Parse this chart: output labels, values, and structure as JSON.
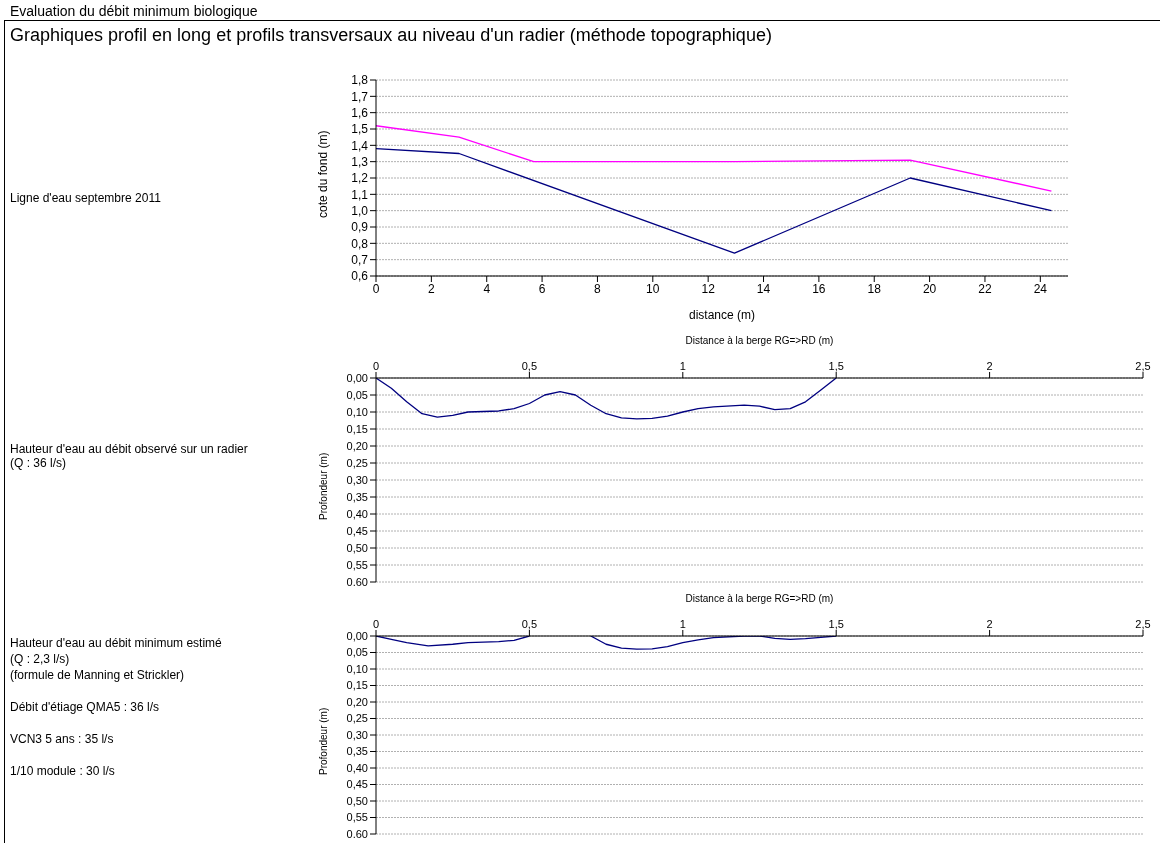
{
  "chart_data": [
    {
      "type": "line",
      "title": "Graphiques profil en long et profils transversaux au niveau d'un radier (méthode topographique)",
      "annotations": [
        "Evaluation du débit minimum biologique",
        "Ligne d'eau septembre 2011"
      ],
      "xlabel": "distance (m)",
      "ylabel": "cote du fond (m)",
      "xlim": [
        0,
        25
      ],
      "xticks": [
        0,
        2,
        4,
        6,
        8,
        10,
        12,
        14,
        16,
        18,
        20,
        22,
        24
      ],
      "ylim": [
        0.6,
        1.8
      ],
      "yticks": [
        {
          "value": 0.6,
          "label": "0,6"
        },
        {
          "value": 0.7,
          "label": "0,7"
        },
        {
          "value": 0.8,
          "label": "0,8"
        },
        {
          "value": 0.9,
          "label": "0,9"
        },
        {
          "value": 1.0,
          "label": "1,0"
        },
        {
          "value": 1.1,
          "label": "1,1"
        },
        {
          "value": 1.2,
          "label": "1,2"
        },
        {
          "value": 1.3,
          "label": "1,3"
        },
        {
          "value": 1.4,
          "label": "1,4"
        },
        {
          "value": 1.5,
          "label": "1,5"
        },
        {
          "value": 1.6,
          "label": "1,6"
        },
        {
          "value": 1.7,
          "label": "1,7"
        },
        {
          "value": 1.8,
          "label": "1,8"
        }
      ],
      "grid": "y",
      "marker": "none",
      "line_style": "solid",
      "series": [
        {
          "color": "#ff00ff",
          "x": [
            0,
            3,
            5.7,
            12.95,
            19.3,
            24.4
          ],
          "values": [
            1.52,
            1.45,
            1.3,
            1.3,
            1.31,
            1.12
          ]
        },
        {
          "color": "#000080",
          "x": [
            0,
            3,
            12.95,
            19.3,
            24.4
          ],
          "values": [
            1.38,
            1.35,
            0.74,
            1.2,
            1.0
          ]
        }
      ]
    },
    {
      "type": "line",
      "annotations": [
        "Hauteur d'eau au débit observé sur un radier (Q : 36 l/s)"
      ],
      "xlabel": "Distance à la berge RG=>RD (m)",
      "ylabel": "Profondeur (m)",
      "xlim": [
        0,
        2.5
      ],
      "xticks": [
        0,
        {
          "value": 0.5,
          "label": "0,5"
        },
        1,
        {
          "value": 1.5,
          "label": "1,5"
        },
        2,
        {
          "value": 2.5,
          "label": "2,5"
        }
      ],
      "ylim": [
        0.6,
        0
      ],
      "yticks": [
        {
          "value": 0,
          "label": "0,00"
        },
        {
          "value": 0.05,
          "label": "0,05"
        },
        {
          "value": 0.1,
          "label": "0,10"
        },
        {
          "value": 0.15,
          "label": "0,15"
        },
        {
          "value": 0.2,
          "label": "0,20"
        },
        {
          "value": 0.25,
          "label": "0,25"
        },
        {
          "value": 0.3,
          "label": "0,30"
        },
        {
          "value": 0.35,
          "label": "0,35"
        },
        {
          "value": 0.4,
          "label": "0,40"
        },
        {
          "value": 0.45,
          "label": "0,45"
        },
        {
          "value": 0.5,
          "label": "0,50"
        },
        {
          "value": 0.55,
          "label": "0,55"
        },
        {
          "value": 0.6,
          "label": "0,60"
        }
      ],
      "grid": "y",
      "marker": "none",
      "line_style": "solid",
      "series": [
        {
          "color": "#000080",
          "x": [
            0,
            0.05,
            0.1,
            0.15,
            0.2,
            0.25,
            0.3,
            0.4,
            0.45,
            0.5,
            0.55,
            0.6,
            0.65,
            0.7,
            0.75,
            0.8,
            0.85,
            0.9,
            0.95,
            1.0,
            1.05,
            1.1,
            1.2,
            1.25,
            1.3,
            1.35,
            1.4,
            1.45,
            1.5
          ],
          "values": [
            0,
            0.03,
            0.07,
            0.105,
            0.115,
            0.11,
            0.1,
            0.097,
            0.09,
            0.075,
            0.05,
            0.04,
            0.05,
            0.08,
            0.105,
            0.117,
            0.12,
            0.119,
            0.112,
            0.1,
            0.09,
            0.085,
            0.08,
            0.083,
            0.093,
            0.09,
            0.07,
            0.035,
            0
          ]
        }
      ]
    },
    {
      "type": "line",
      "annotations": [
        "Hauteur d'eau au débit minimum estimé",
        "(Q : 2,3 l/s)",
        "(formule de Manning et Strickler)",
        "Débit d'étiage QMA5 : 36 l/s",
        "VCN3 5 ans : 35 l/s",
        "1/10 module : 30 l/s"
      ],
      "xlabel": "Distance à la berge RG=>RD (m)",
      "ylabel": "Profondeur (m)",
      "xlim": [
        0,
        2.5
      ],
      "xticks": [
        0,
        {
          "value": 0.5,
          "label": "0,5"
        },
        1,
        {
          "value": 1.5,
          "label": "1,5"
        },
        2,
        {
          "value": 2.5,
          "label": "2,5"
        }
      ],
      "ylim": [
        0.6,
        0
      ],
      "yticks": [
        {
          "value": 0,
          "label": "0,00"
        },
        {
          "value": 0.05,
          "label": "0,05"
        },
        {
          "value": 0.1,
          "label": "0,10"
        },
        {
          "value": 0.15,
          "label": "0,15"
        },
        {
          "value": 0.2,
          "label": "0,20"
        },
        {
          "value": 0.25,
          "label": "0,25"
        },
        {
          "value": 0.3,
          "label": "0,30"
        },
        {
          "value": 0.35,
          "label": "0,35"
        },
        {
          "value": 0.4,
          "label": "0,40"
        },
        {
          "value": 0.45,
          "label": "0,45"
        },
        {
          "value": 0.5,
          "label": "0,50"
        },
        {
          "value": 0.55,
          "label": "0,55"
        },
        {
          "value": 0.6,
          "label": "0,60"
        }
      ],
      "grid": "y",
      "marker": "none",
      "line_style": "solid",
      "series": [
        {
          "color": "#000080",
          "x": [
            0,
            0.05,
            0.1,
            0.17,
            0.25,
            0.3,
            0.4,
            0.45,
            0.5,
            0.6,
            0.7,
            0.75,
            0.8,
            0.85,
            0.9,
            0.95,
            1.0,
            1.05,
            1.1,
            1.2,
            1.25,
            1.3,
            1.35,
            1.4,
            1.45,
            1.5
          ],
          "values": [
            0,
            0.01,
            0.02,
            0.03,
            0.025,
            0.02,
            0.017,
            0.013,
            0,
            null,
            0,
            0.025,
            0.037,
            0.04,
            0.039,
            0.032,
            0.02,
            0.012,
            0.005,
            0,
            0,
            0.007,
            0.01,
            0.008,
            0.004,
            0
          ]
        }
      ]
    }
  ]
}
